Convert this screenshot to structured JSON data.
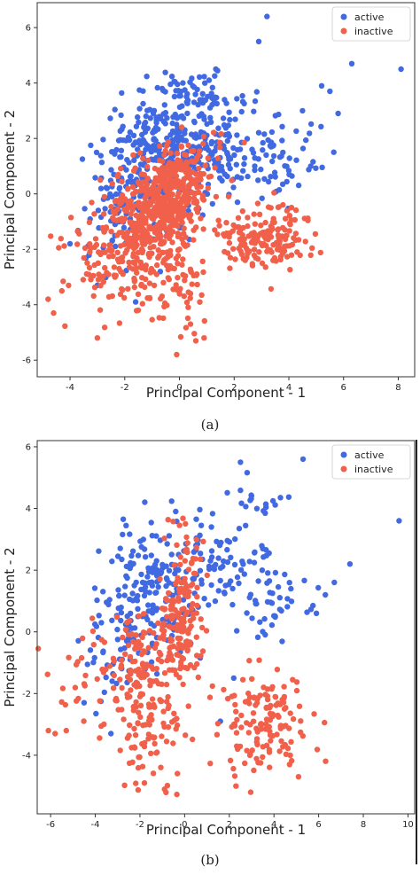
{
  "captions": [
    "(a)",
    "(b)"
  ],
  "chart_data": [
    {
      "type": "scatter",
      "xlabel": "Principal Component - 1",
      "ylabel": "Principal Component - 2",
      "xlim": [
        -5.2,
        8.6
      ],
      "ylim": [
        -6.6,
        6.9
      ],
      "xticks": [
        -4,
        -2,
        0,
        2,
        4,
        6,
        8
      ],
      "yticks": [
        -6,
        -4,
        -2,
        0,
        2,
        4,
        6
      ],
      "legend": "top-right",
      "series": [
        {
          "name": "active",
          "color": "#4169e1",
          "clusters": [
            {
              "cx": -0.6,
              "cy": 1.5,
              "sx": 1.1,
              "sy": 1.0,
              "n": 300
            },
            {
              "cx": 1.6,
              "cy": 1.8,
              "sx": 1.0,
              "sy": 0.9,
              "n": 90
            },
            {
              "cx": 3.6,
              "cy": 1.3,
              "sx": 0.8,
              "sy": 0.7,
              "n": 60
            },
            {
              "cx": -2.0,
              "cy": -0.6,
              "sx": 0.8,
              "sy": 1.0,
              "n": 90
            },
            {
              "cx": 0.6,
              "cy": 3.7,
              "sx": 0.8,
              "sy": 0.4,
              "n": 45
            }
          ],
          "points": [
            [
              3.2,
              6.4
            ],
            [
              2.9,
              5.5
            ],
            [
              6.3,
              4.7
            ],
            [
              8.1,
              4.5
            ],
            [
              5.2,
              3.9
            ],
            [
              5.5,
              3.7
            ],
            [
              5.8,
              2.9
            ],
            [
              4.8,
              1.0
            ],
            [
              4.5,
              3.0
            ],
            [
              -3.0,
              -3.3
            ],
            [
              -1.6,
              -3.9
            ],
            [
              -4.0,
              -1.8
            ]
          ]
        },
        {
          "name": "inactive",
          "color": "#f0604a",
          "clusters": [
            {
              "cx": -0.2,
              "cy": 0.0,
              "sx": 0.5,
              "sy": 0.9,
              "n": 320
            },
            {
              "cx": -1.3,
              "cy": -1.2,
              "sx": 0.7,
              "sy": 1.0,
              "n": 280
            },
            {
              "cx": 3.1,
              "cy": -1.5,
              "sx": 0.9,
              "sy": 0.6,
              "n": 170
            },
            {
              "cx": -2.6,
              "cy": -2.4,
              "sx": 1.1,
              "sy": 0.9,
              "n": 90
            },
            {
              "cx": 0.0,
              "cy": -3.6,
              "sx": 0.7,
              "sy": 0.9,
              "n": 55
            },
            {
              "cx": 0.8,
              "cy": 1.0,
              "sx": 0.5,
              "sy": 0.6,
              "n": 40
            }
          ],
          "points": [
            [
              -4.8,
              -3.8
            ],
            [
              -4.6,
              -4.3
            ],
            [
              -3.0,
              -5.2
            ],
            [
              -0.1,
              -5.8
            ],
            [
              0.6,
              -5.3
            ],
            [
              0.9,
              -5.2
            ],
            [
              -4.3,
              -3.5
            ],
            [
              4.3,
              -2.1
            ]
          ]
        }
      ]
    },
    {
      "type": "scatter",
      "xlabel": "Principal Component - 1",
      "ylabel": "Principal Component - 2",
      "xlim": [
        -6.6,
        10.3
      ],
      "ylim": [
        -5.9,
        6.2
      ],
      "xticks": [
        -6,
        -4,
        -2,
        0,
        2,
        4,
        6,
        8,
        10
      ],
      "yticks": [
        -4,
        -2,
        0,
        2,
        4,
        6
      ],
      "legend": "top-right",
      "series": [
        {
          "name": "active",
          "color": "#4169e1",
          "clusters": [
            {
              "cx": -1.3,
              "cy": 1.3,
              "sx": 1.1,
              "sy": 1.1,
              "n": 180
            },
            {
              "cx": 1.8,
              "cy": 2.3,
              "sx": 1.1,
              "sy": 0.9,
              "n": 70
            },
            {
              "cx": 3.8,
              "cy": 1.0,
              "sx": 0.9,
              "sy": 0.7,
              "n": 45
            },
            {
              "cx": -3.0,
              "cy": -0.8,
              "sx": 0.8,
              "sy": 1.0,
              "n": 40
            },
            {
              "cx": 2.8,
              "cy": 4.2,
              "sx": 1.0,
              "sy": 0.3,
              "n": 18
            }
          ],
          "points": [
            [
              2.5,
              5.5
            ],
            [
              5.3,
              5.6
            ],
            [
              9.6,
              3.6
            ],
            [
              7.4,
              2.2
            ],
            [
              6.7,
              1.6
            ],
            [
              6.3,
              1.2
            ],
            [
              5.9,
              0.6
            ],
            [
              -3.3,
              -3.3
            ],
            [
              -4.5,
              -2.3
            ],
            [
              1.6,
              -2.9
            ],
            [
              2.2,
              -1.5
            ],
            [
              -0.4,
              3.9
            ]
          ]
        },
        {
          "name": "inactive",
          "color": "#f0604a",
          "clusters": [
            {
              "cx": -0.2,
              "cy": 0.1,
              "sx": 0.5,
              "sy": 0.9,
              "n": 140
            },
            {
              "cx": -1.9,
              "cy": -1.2,
              "sx": 0.6,
              "sy": 0.9,
              "n": 110
            },
            {
              "cx": -1.5,
              "cy": -3.3,
              "sx": 0.8,
              "sy": 0.8,
              "n": 70
            },
            {
              "cx": 3.5,
              "cy": -2.9,
              "sx": 1.1,
              "sy": 0.8,
              "n": 140
            },
            {
              "cx": -4.3,
              "cy": -1.5,
              "sx": 0.9,
              "sy": 0.9,
              "n": 35
            },
            {
              "cx": 0.0,
              "cy": 2.6,
              "sx": 0.4,
              "sy": 0.5,
              "n": 25
            }
          ],
          "points": [
            [
              -6.1,
              -3.2
            ],
            [
              -5.8,
              -3.3
            ],
            [
              -5.3,
              -3.2
            ],
            [
              -1.8,
              -4.9
            ],
            [
              -0.9,
              -5.1
            ],
            [
              2.3,
              -5.0
            ],
            [
              4.7,
              -4.3
            ],
            [
              5.1,
              -4.7
            ]
          ]
        }
      ]
    }
  ]
}
